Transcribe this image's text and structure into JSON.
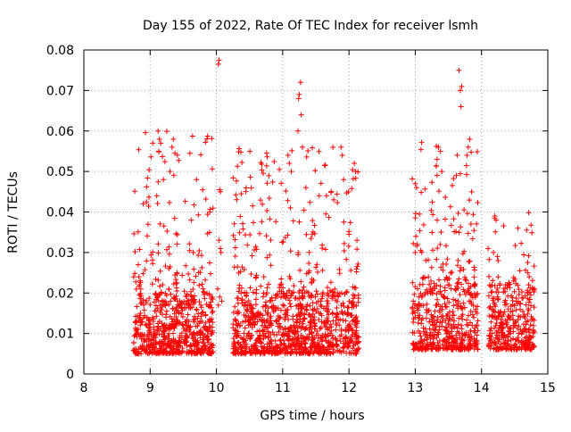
{
  "chart_data": {
    "type": "scatter",
    "title": "Day 155 of 2022, Rate Of TEC Index for receiver lsmh",
    "xlabel": "GPS time / hours",
    "ylabel": "ROTI / TECUs",
    "xlim": [
      8,
      15
    ],
    "ylim": [
      0,
      0.08
    ],
    "xticks": [
      "8",
      "9",
      "10",
      "11",
      "12",
      "13",
      "14",
      "15"
    ],
    "yticks": [
      "0",
      "0.01",
      "0.02",
      "0.03",
      "0.04",
      "0.05",
      "0.06",
      "0.07",
      "0.08"
    ],
    "grid": true,
    "marker": "+",
    "color": "#ff0000",
    "series": [
      {
        "name": "ROTI",
        "clusters": [
          {
            "x_range": [
              8.75,
              9.95
            ],
            "base_range": [
              0.005,
              0.02
            ],
            "count": 600,
            "seed": 11
          },
          {
            "x_range": [
              8.75,
              9.95
            ],
            "base_range": [
              0.02,
              0.06
            ],
            "count": 120,
            "seed": 12
          },
          {
            "x_range": [
              10.25,
              12.15
            ],
            "base_range": [
              0.005,
              0.02
            ],
            "count": 900,
            "seed": 21
          },
          {
            "x_range": [
              10.25,
              12.15
            ],
            "base_range": [
              0.02,
              0.056
            ],
            "count": 200,
            "seed": 22
          },
          {
            "x_range": [
              12.95,
              13.95
            ],
            "base_range": [
              0.006,
              0.022
            ],
            "count": 420,
            "seed": 31
          },
          {
            "x_range": [
              12.95,
              13.95
            ],
            "base_range": [
              0.022,
              0.058
            ],
            "count": 110,
            "seed": 32
          },
          {
            "x_range": [
              14.1,
              14.8
            ],
            "base_range": [
              0.006,
              0.022
            ],
            "count": 320,
            "seed": 41
          },
          {
            "x_range": [
              14.1,
              14.8
            ],
            "base_range": [
              0.022,
              0.04
            ],
            "count": 30,
            "seed": 42
          }
        ],
        "points": [
          [
            8.82,
            0.027
          ],
          [
            8.83,
            0.024
          ],
          [
            8.84,
            0.022
          ],
          [
            8.85,
            0.023
          ],
          [
            8.86,
            0.021
          ],
          [
            9.12,
            0.06
          ],
          [
            9.14,
            0.058
          ],
          [
            9.16,
            0.057
          ],
          [
            9.13,
            0.055
          ],
          [
            9.35,
            0.058
          ],
          [
            9.33,
            0.056
          ],
          [
            9.3,
            0.05
          ],
          [
            9.2,
            0.048
          ],
          [
            9.1,
            0.044
          ],
          [
            9.7,
            0.048
          ],
          [
            9.62,
            0.038
          ],
          [
            9.9,
            0.04
          ],
          [
            9.65,
            0.03
          ],
          [
            10.04,
            0.0775
          ],
          [
            10.03,
            0.0765
          ],
          [
            10.05,
            0.0455
          ],
          [
            10.06,
            0.045
          ],
          [
            10.04,
            0.033
          ],
          [
            10.06,
            0.031
          ],
          [
            10.07,
            0.03
          ],
          [
            10.02,
            0.021
          ],
          [
            10.05,
            0.019
          ],
          [
            10.08,
            0.018
          ],
          [
            10.03,
            0.017
          ],
          [
            10.3,
            0.01
          ],
          [
            10.32,
            0.006
          ],
          [
            10.34,
            0.005
          ],
          [
            11.27,
            0.072
          ],
          [
            11.25,
            0.069
          ],
          [
            11.24,
            0.068
          ],
          [
            11.28,
            0.064
          ],
          [
            11.23,
            0.06
          ],
          [
            11.08,
            0.054
          ],
          [
            11.1,
            0.052
          ],
          [
            11.13,
            0.05
          ],
          [
            10.95,
            0.0505
          ],
          [
            11.88,
            0.056
          ],
          [
            11.9,
            0.054
          ],
          [
            11.92,
            0.048
          ],
          [
            12.08,
            0.052
          ],
          [
            12.1,
            0.05
          ],
          [
            11.35,
            0.046
          ],
          [
            11.55,
            0.044
          ],
          [
            12.12,
            0.033
          ],
          [
            13.0,
            0.047
          ],
          [
            13.02,
            0.046
          ],
          [
            13.01,
            0.034
          ],
          [
            13.03,
            0.032
          ],
          [
            13.0,
            0.03
          ],
          [
            12.97,
            0.018
          ],
          [
            12.96,
            0.015
          ],
          [
            13.0,
            0.014
          ],
          [
            13.66,
            0.075
          ],
          [
            13.7,
            0.071
          ],
          [
            13.68,
            0.07
          ],
          [
            13.69,
            0.066
          ],
          [
            13.82,
            0.058
          ],
          [
            13.8,
            0.056
          ],
          [
            13.78,
            0.054
          ],
          [
            13.35,
            0.056
          ],
          [
            13.38,
            0.055
          ],
          [
            13.33,
            0.053
          ],
          [
            13.4,
            0.05
          ],
          [
            13.62,
            0.049
          ],
          [
            13.85,
            0.045
          ],
          [
            14.2,
            0.039
          ],
          [
            14.22,
            0.038
          ],
          [
            14.18,
            0.03
          ],
          [
            14.24,
            0.029
          ],
          [
            14.25,
            0.028
          ],
          [
            14.7,
            0.025
          ],
          [
            14.72,
            0.024
          ],
          [
            14.71,
            0.022
          ],
          [
            14.1,
            0.031
          ]
        ]
      }
    ]
  }
}
